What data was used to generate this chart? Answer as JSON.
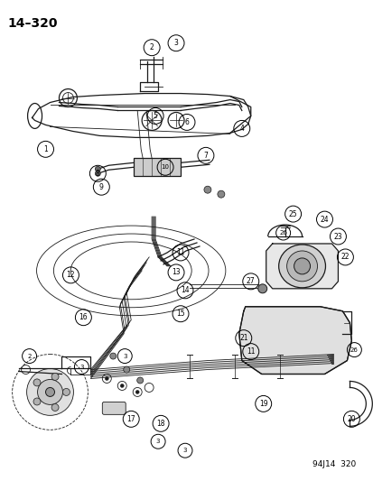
{
  "title_text": "14–320",
  "footer_text": "94J14  320",
  "bg_color": "#ffffff",
  "line_color": "#1a1a1a",
  "title_fontsize": 10,
  "footer_fontsize": 6.5,
  "fig_width": 4.14,
  "fig_height": 5.33,
  "dpi": 100
}
